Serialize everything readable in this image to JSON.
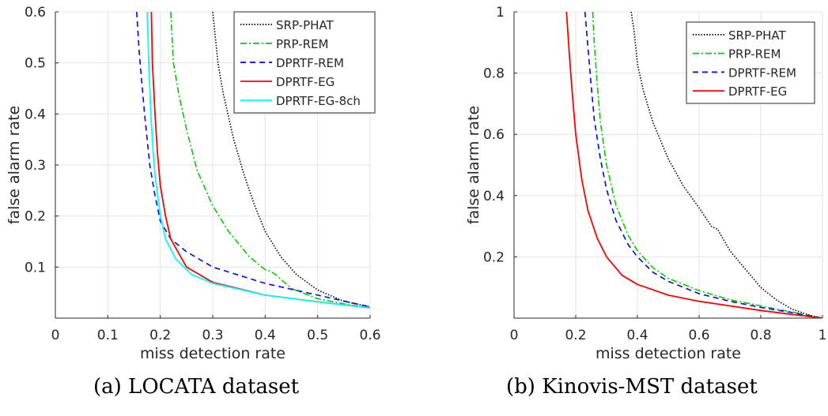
{
  "chart_data": [
    {
      "type": "line",
      "caption": "(a) LOCATA dataset",
      "xlabel": "miss detection rate",
      "ylabel": "false alarm rate",
      "xlim": [
        0,
        0.6
      ],
      "ylim": [
        0,
        0.6
      ],
      "xticks": [
        0,
        0.1,
        0.2,
        0.3,
        0.4,
        0.5,
        0.6
      ],
      "xtick_labels": [
        "0",
        "0.1",
        "0.2",
        "0.3",
        "0.4",
        "0.5",
        "0.6"
      ],
      "yticks": [
        0.1,
        0.2,
        0.3,
        0.4,
        0.5,
        0.6
      ],
      "ytick_labels": [
        "0.1",
        "0.2",
        "0.3",
        "0.4",
        "0.5",
        "0.6"
      ],
      "grid": true,
      "legend_position": "top-right",
      "series": [
        {
          "name": "SRP-PHAT",
          "color": "#000000",
          "dash": "dotted",
          "x": [
            0.3,
            0.31,
            0.32,
            0.34,
            0.36,
            0.38,
            0.4,
            0.43,
            0.46,
            0.5,
            0.55,
            0.6
          ],
          "y": [
            0.6,
            0.5,
            0.44,
            0.35,
            0.28,
            0.22,
            0.17,
            0.12,
            0.085,
            0.055,
            0.033,
            0.022
          ]
        },
        {
          "name": "PRP-REM",
          "color": "#00cc00",
          "dash": "dashdot",
          "x": [
            0.22,
            0.225,
            0.235,
            0.25,
            0.27,
            0.3,
            0.33,
            0.37,
            0.4,
            0.41,
            0.42,
            0.45,
            0.5,
            0.55,
            0.6
          ],
          "y": [
            0.6,
            0.5,
            0.44,
            0.37,
            0.29,
            0.22,
            0.17,
            0.12,
            0.095,
            0.092,
            0.085,
            0.058,
            0.038,
            0.028,
            0.02
          ]
        },
        {
          "name": "DPRTF-REM",
          "color": "#0000ff",
          "dash": "dashed",
          "x": [
            0.155,
            0.16,
            0.165,
            0.17,
            0.175,
            0.18,
            0.19,
            0.2,
            0.22,
            0.25,
            0.3,
            0.4,
            0.5,
            0.6
          ],
          "y": [
            0.6,
            0.52,
            0.46,
            0.4,
            0.35,
            0.3,
            0.24,
            0.19,
            0.155,
            0.13,
            0.1,
            0.068,
            0.045,
            0.022
          ]
        },
        {
          "name": "DPRTF-EG",
          "color": "#ff0000",
          "dash": "solid",
          "x": [
            0.183,
            0.185,
            0.19,
            0.195,
            0.2,
            0.21,
            0.22,
            0.25,
            0.3,
            0.4,
            0.5,
            0.6
          ],
          "y": [
            0.6,
            0.5,
            0.4,
            0.32,
            0.26,
            0.2,
            0.155,
            0.1,
            0.07,
            0.045,
            0.032,
            0.02
          ]
        },
        {
          "name": "DPRTF-EG-8ch",
          "color": "#00ffff",
          "dash": "solid",
          "x": [
            0.175,
            0.178,
            0.182,
            0.186,
            0.19,
            0.2,
            0.21,
            0.23,
            0.26,
            0.3,
            0.4,
            0.5,
            0.6
          ],
          "y": [
            0.6,
            0.5,
            0.4,
            0.33,
            0.28,
            0.2,
            0.155,
            0.115,
            0.085,
            0.068,
            0.045,
            0.032,
            0.02
          ]
        }
      ]
    },
    {
      "type": "line",
      "caption": "(b) Kinovis-MST dataset",
      "xlabel": "miss detection rate",
      "ylabel": "false alarm rate",
      "xlim": [
        0,
        1
      ],
      "ylim": [
        0,
        1
      ],
      "xticks": [
        0,
        0.2,
        0.4,
        0.6,
        0.8,
        1
      ],
      "xtick_labels": [
        "0",
        "0.2",
        "0.4",
        "0.6",
        "0.8",
        "1"
      ],
      "yticks": [
        0.2,
        0.4,
        0.6,
        0.8,
        1
      ],
      "ytick_labels": [
        "0.2",
        "0.4",
        "0.6",
        "0.8",
        "1"
      ],
      "grid": true,
      "legend_position": "top-right",
      "series": [
        {
          "name": "SRP-PHAT",
          "color": "#000000",
          "dash": "dotted",
          "x": [
            0.38,
            0.39,
            0.4,
            0.42,
            0.45,
            0.5,
            0.55,
            0.6,
            0.64,
            0.66,
            0.7,
            0.75,
            0.8,
            0.85,
            0.9,
            0.95,
            1.0
          ],
          "y": [
            1.0,
            0.93,
            0.83,
            0.74,
            0.64,
            0.52,
            0.43,
            0.36,
            0.3,
            0.29,
            0.22,
            0.16,
            0.1,
            0.06,
            0.03,
            0.012,
            0.0
          ]
        },
        {
          "name": "PRP-REM",
          "color": "#00cc00",
          "dash": "dashdot",
          "x": [
            0.255,
            0.26,
            0.27,
            0.28,
            0.3,
            0.33,
            0.37,
            0.4,
            0.45,
            0.5,
            0.6,
            0.7,
            0.8,
            0.9,
            1.0
          ],
          "y": [
            1.0,
            0.9,
            0.76,
            0.64,
            0.5,
            0.37,
            0.27,
            0.22,
            0.165,
            0.13,
            0.09,
            0.06,
            0.04,
            0.02,
            0.0
          ]
        },
        {
          "name": "DPRTF-REM",
          "color": "#0000ff",
          "dash": "dashed",
          "x": [
            0.23,
            0.24,
            0.25,
            0.26,
            0.28,
            0.3,
            0.33,
            0.37,
            0.4,
            0.45,
            0.5,
            0.6,
            0.7,
            0.8,
            0.9,
            1.0
          ],
          "y": [
            1.0,
            0.88,
            0.76,
            0.65,
            0.52,
            0.42,
            0.32,
            0.24,
            0.2,
            0.15,
            0.12,
            0.08,
            0.055,
            0.035,
            0.018,
            0.0
          ]
        },
        {
          "name": "DPRTF-EG",
          "color": "#ff0000",
          "dash": "solid",
          "x": [
            0.17,
            0.18,
            0.19,
            0.2,
            0.22,
            0.24,
            0.27,
            0.3,
            0.35,
            0.4,
            0.5,
            0.6,
            0.7,
            0.8,
            0.9,
            1.0
          ],
          "y": [
            1.0,
            0.85,
            0.72,
            0.6,
            0.45,
            0.35,
            0.26,
            0.2,
            0.14,
            0.11,
            0.075,
            0.055,
            0.04,
            0.025,
            0.012,
            0.0
          ]
        }
      ]
    }
  ]
}
